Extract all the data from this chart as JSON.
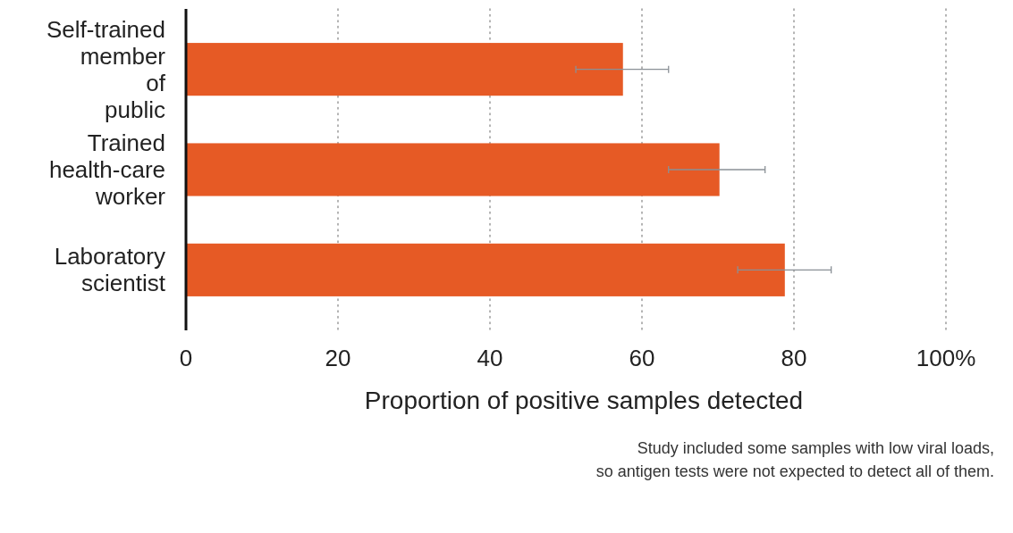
{
  "chart_data": {
    "type": "bar",
    "orientation": "horizontal",
    "xlabel": "Proportion of positive samples detected",
    "categories": [
      "Self-trained member of public",
      "Trained health-care worker",
      "Laboratory scientist"
    ],
    "values": [
      57.5,
      70.2,
      78.8
    ],
    "errors": [
      [
        51.3,
        63.5
      ],
      [
        63.5,
        76.2
      ],
      [
        72.6,
        84.9
      ]
    ],
    "color": "#e65a25",
    "xlim": [
      0,
      100
    ],
    "xticks": [
      0,
      20,
      40,
      60,
      80,
      {
        "value": 100,
        "label": "100%"
      }
    ],
    "grid": "x",
    "annotations": [
      "Study included some samples with low viral loads,",
      "so antigen tests were not expected to detect all of them."
    ]
  }
}
